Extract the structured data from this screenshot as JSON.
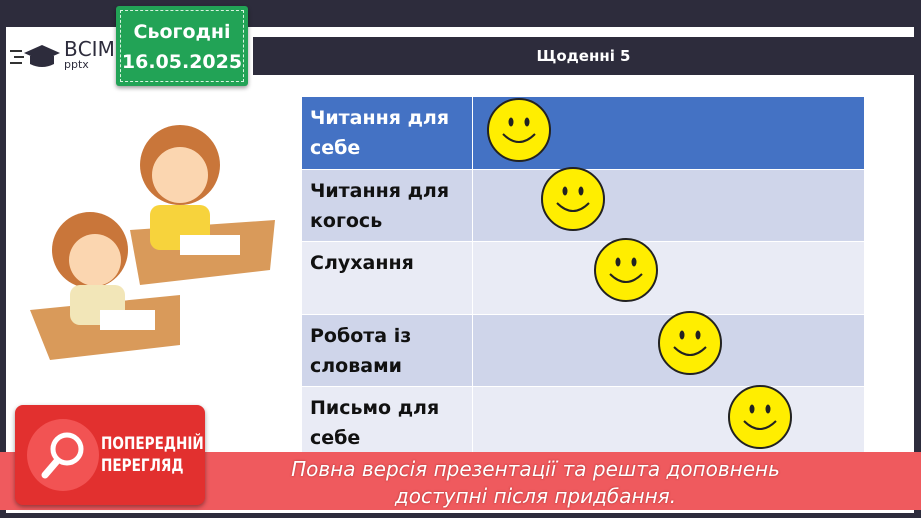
{
  "header": {
    "title": "Щоденні 5",
    "date_label": "Сьогодні",
    "date": "16.05.2025",
    "logo_main": "ВСІМ",
    "logo_sub": "pptx"
  },
  "table": {
    "rows": [
      "Читання для себе",
      "Читання для когось",
      "Слухання",
      "Робота із словами",
      "Письмо для себе"
    ]
  },
  "colors": {
    "header_row": "#4472c4",
    "row_a": "#cfd5ea",
    "row_b": "#e9ebf5",
    "smiley": "#ffee00",
    "banner": "#ef5a5e"
  },
  "preview": {
    "badge_line1": "ПОПЕРЕДНІЙ",
    "badge_line2": "ПЕРЕГЛЯД",
    "line1": "Повна версія презентації та решта доповнень",
    "line2": "доступні після придбання."
  }
}
